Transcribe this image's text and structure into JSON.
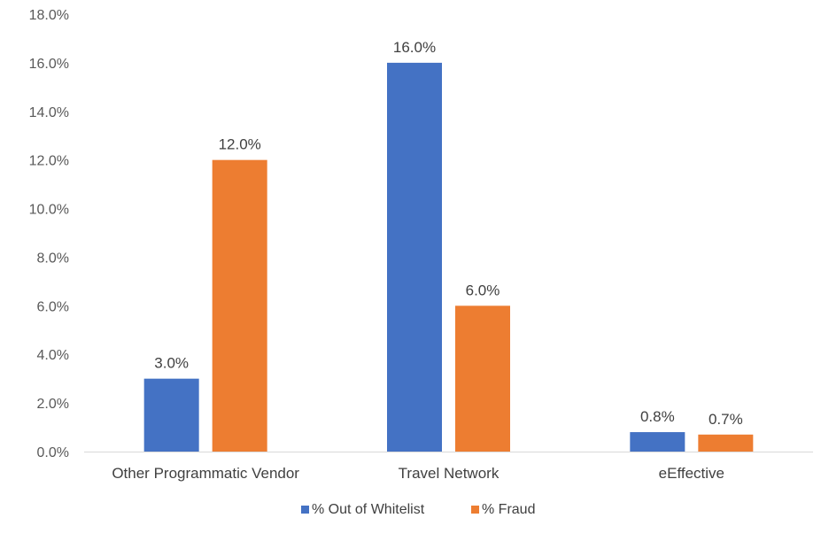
{
  "chart_data": {
    "type": "bar",
    "categories": [
      "Other Programmatic Vendor",
      "Travel Network",
      "eEffective"
    ],
    "series": [
      {
        "name": "% Out of Whitelist",
        "values": [
          3.0,
          16.0,
          0.8
        ],
        "color": "#4472c4"
      },
      {
        "name": "% Fraud",
        "values": [
          12.0,
          6.0,
          0.7
        ],
        "color": "#ed7d31"
      }
    ],
    "ylim": [
      0,
      18
    ],
    "yticks": [
      "0.0%",
      "2.0%",
      "4.0%",
      "6.0%",
      "8.0%",
      "10.0%",
      "12.0%",
      "14.0%",
      "16.0%",
      "18.0%"
    ],
    "data_labels": [
      [
        "3.0%",
        "16.0%",
        "0.8%"
      ],
      [
        "12.0%",
        "6.0%",
        "0.7%"
      ]
    ],
    "legend_position": "bottom",
    "grid": false
  }
}
